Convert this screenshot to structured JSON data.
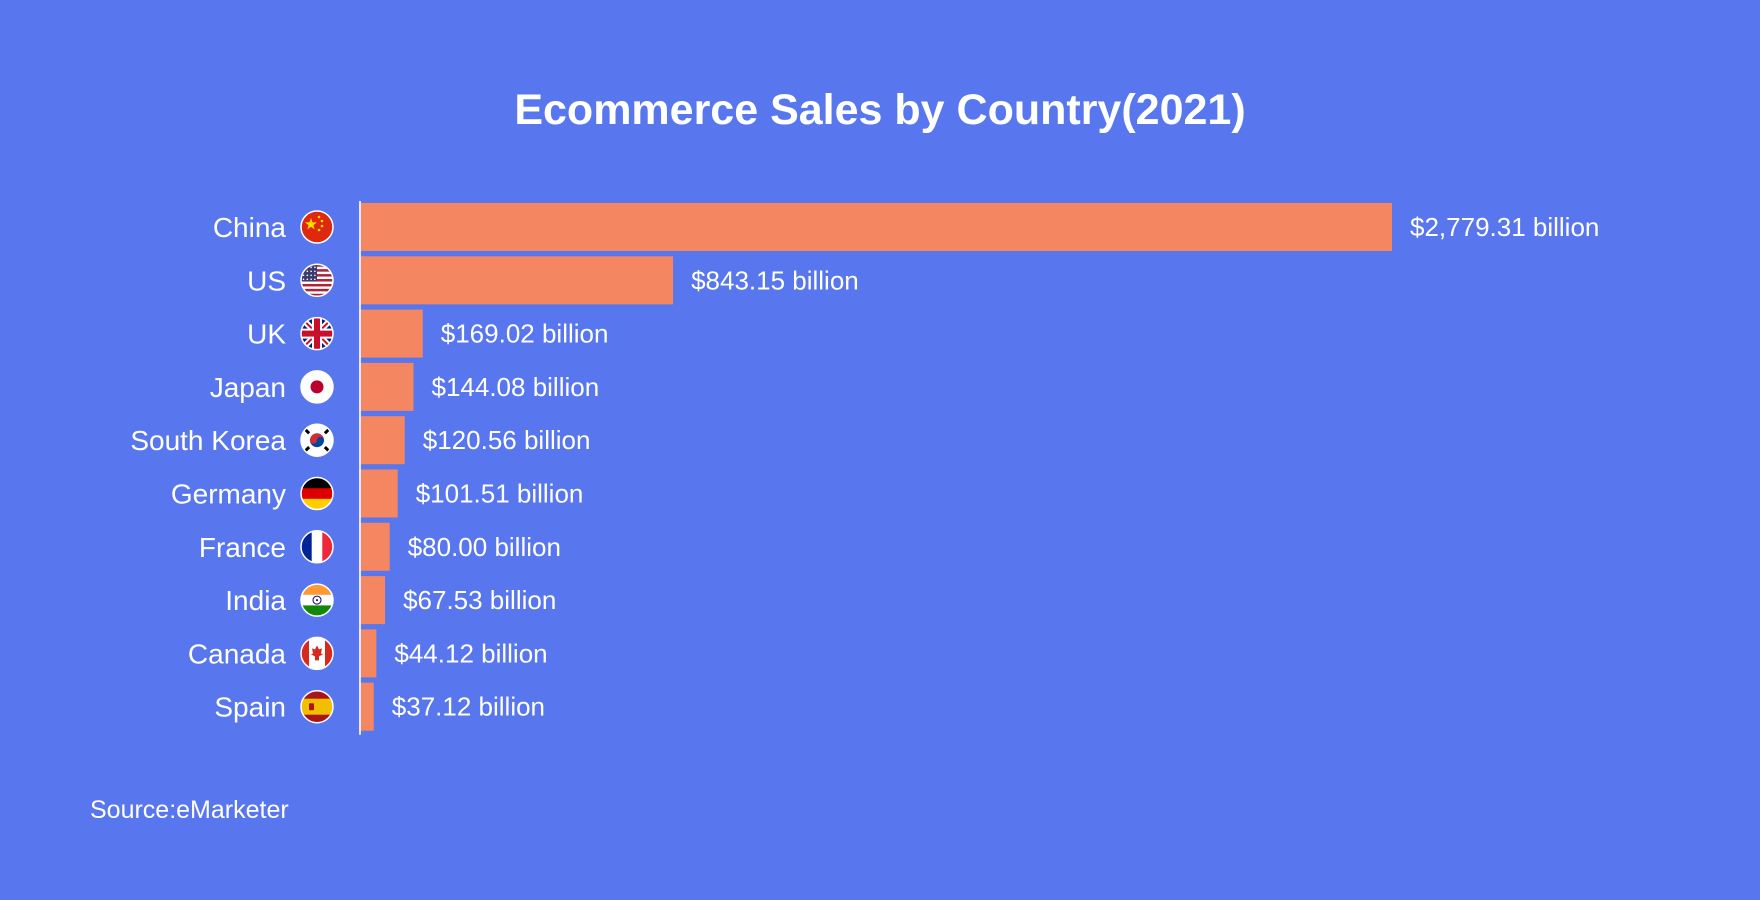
{
  "chart_data": {
    "type": "bar",
    "orientation": "horizontal",
    "title": "Ecommerce Sales by Country(2021)",
    "source": "Source:eMarketer",
    "categories": [
      "China",
      "US",
      "UK",
      "Japan",
      "South Korea",
      "Germany",
      "France",
      "India",
      "Canada",
      "Spain"
    ],
    "values": [
      2779.31,
      843.15,
      169.02,
      144.08,
      120.56,
      101.51,
      80.0,
      67.53,
      44.12,
      37.12
    ],
    "value_labels": [
      "$2,779.31 billion",
      "$843.15 billion",
      "$169.02 billion",
      "$144.08 billion",
      "$120.56 billion",
      "$101.51 billion",
      "$80.00 billion",
      "$67.53 billion",
      "$44.12 billion",
      "$37.12 billion"
    ],
    "flag_icons": [
      "china-flag-icon",
      "us-flag-icon",
      "uk-flag-icon",
      "japan-flag-icon",
      "south-korea-flag-icon",
      "germany-flag-icon",
      "france-flag-icon",
      "india-flag-icon",
      "canada-flag-icon",
      "spain-flag-icon"
    ],
    "unit": "billion",
    "xlim": [
      0,
      2779.31
    ],
    "grid": false,
    "legend": "none",
    "colors": {
      "background": "#5877EE",
      "bar": "#F58662",
      "text": "#FFFFFF",
      "axis": "#E8E8F5"
    }
  }
}
